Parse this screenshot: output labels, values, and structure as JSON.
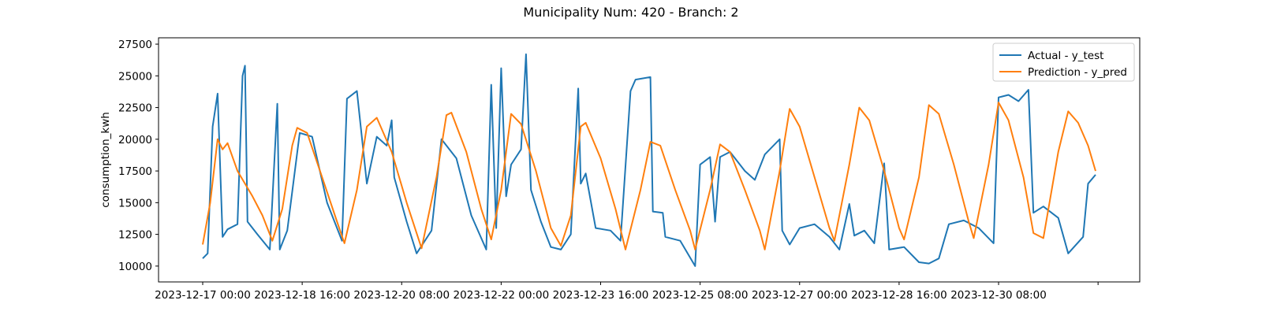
{
  "chart_data": {
    "type": "line",
    "title": "Municipality Num: 420 - Branch: 2",
    "xlabel": "",
    "ylabel": "consumption_kwh",
    "x_range": [
      "2023-12-17 00:00",
      "2023-12-31 23:00"
    ],
    "x_ticks": [
      "2023-12-17 00:00",
      "2023-12-18 16:00",
      "2023-12-20 08:00",
      "2023-12-22 00:00",
      "2023-12-23 16:00",
      "2023-12-25 08:00",
      "2023-12-27 00:00",
      "2023-12-28 16:00",
      "2023-12-30 08:00",
      ""
    ],
    "ylim": [
      8750,
      28000
    ],
    "y_ticks": [
      10000,
      12500,
      15000,
      17500,
      20000,
      22500,
      25000,
      27500
    ],
    "y_tick_labels": [
      "10000",
      "12500",
      "15000",
      "17500",
      "20000",
      "22500",
      "25000",
      "27500"
    ],
    "legend_position": "upper-right",
    "series": [
      {
        "name": "Actual - y_test",
        "color": "#1f77b4",
        "points": [
          [
            "2023-12-17 00:00",
            10600
          ],
          [
            "2023-12-17 02:00",
            11000
          ],
          [
            "2023-12-17 04:00",
            21000
          ],
          [
            "2023-12-17 06:00",
            23600
          ],
          [
            "2023-12-17 08:00",
            12300
          ],
          [
            "2023-12-17 10:00",
            12900
          ],
          [
            "2023-12-17 14:00",
            13300
          ],
          [
            "2023-12-17 16:00",
            25000
          ],
          [
            "2023-12-17 17:00",
            25800
          ],
          [
            "2023-12-17 18:00",
            13500
          ],
          [
            "2023-12-17 22:00",
            12500
          ],
          [
            "2023-12-18 03:00",
            11300
          ],
          [
            "2023-12-18 06:00",
            22800
          ],
          [
            "2023-12-18 07:00",
            11300
          ],
          [
            "2023-12-18 10:00",
            12800
          ],
          [
            "2023-12-18 15:00",
            20500
          ],
          [
            "2023-12-18 20:00",
            20200
          ],
          [
            "2023-12-19 02:00",
            15000
          ],
          [
            "2023-12-19 08:00",
            12000
          ],
          [
            "2023-12-19 10:00",
            23200
          ],
          [
            "2023-12-19 14:00",
            23800
          ],
          [
            "2023-12-19 18:00",
            16500
          ],
          [
            "2023-12-19 22:00",
            20200
          ],
          [
            "2023-12-20 02:00",
            19500
          ],
          [
            "2023-12-20 04:00",
            21500
          ],
          [
            "2023-12-20 05:00",
            17000
          ],
          [
            "2023-12-20 10:00",
            13500
          ],
          [
            "2023-12-20 14:00",
            11000
          ],
          [
            "2023-12-20 20:00",
            12800
          ],
          [
            "2023-12-21 00:00",
            20000
          ],
          [
            "2023-12-21 06:00",
            18500
          ],
          [
            "2023-12-21 12:00",
            14000
          ],
          [
            "2023-12-21 18:00",
            11300
          ],
          [
            "2023-12-21 20:00",
            24300
          ],
          [
            "2023-12-21 22:00",
            13000
          ],
          [
            "2023-12-22 00:00",
            25600
          ],
          [
            "2023-12-22 02:00",
            15500
          ],
          [
            "2023-12-22 04:00",
            18000
          ],
          [
            "2023-12-22 08:00",
            19200
          ],
          [
            "2023-12-22 10:00",
            26700
          ],
          [
            "2023-12-22 12:00",
            16000
          ],
          [
            "2023-12-22 16:00",
            13500
          ],
          [
            "2023-12-22 20:00",
            11500
          ],
          [
            "2023-12-23 00:00",
            11300
          ],
          [
            "2023-12-23 04:00",
            12500
          ],
          [
            "2023-12-23 07:00",
            24000
          ],
          [
            "2023-12-23 08:00",
            16500
          ],
          [
            "2023-12-23 10:00",
            17300
          ],
          [
            "2023-12-23 14:00",
            13000
          ],
          [
            "2023-12-23 20:00",
            12800
          ],
          [
            "2023-12-24 00:00",
            12000
          ],
          [
            "2023-12-24 04:00",
            23800
          ],
          [
            "2023-12-24 06:00",
            24700
          ],
          [
            "2023-12-24 12:00",
            24900
          ],
          [
            "2023-12-24 13:00",
            14300
          ],
          [
            "2023-12-24 17:00",
            14200
          ],
          [
            "2023-12-24 18:00",
            12300
          ],
          [
            "2023-12-25 00:00",
            12000
          ],
          [
            "2023-12-25 06:00",
            10000
          ],
          [
            "2023-12-25 08:00",
            18000
          ],
          [
            "2023-12-25 12:00",
            18600
          ],
          [
            "2023-12-25 14:00",
            13500
          ],
          [
            "2023-12-25 16:00",
            18600
          ],
          [
            "2023-12-25 20:00",
            19000
          ],
          [
            "2023-12-26 02:00",
            17500
          ],
          [
            "2023-12-26 06:00",
            16800
          ],
          [
            "2023-12-26 10:00",
            18800
          ],
          [
            "2023-12-26 16:00",
            20000
          ],
          [
            "2023-12-26 17:00",
            12800
          ],
          [
            "2023-12-26 20:00",
            11700
          ],
          [
            "2023-12-27 00:00",
            13000
          ],
          [
            "2023-12-27 06:00",
            13300
          ],
          [
            "2023-12-27 12:00",
            12300
          ],
          [
            "2023-12-27 16:00",
            11300
          ],
          [
            "2023-12-27 20:00",
            14900
          ],
          [
            "2023-12-27 22:00",
            12400
          ],
          [
            "2023-12-28 02:00",
            12800
          ],
          [
            "2023-12-28 06:00",
            11800
          ],
          [
            "2023-12-28 10:00",
            18100
          ],
          [
            "2023-12-28 12:00",
            11300
          ],
          [
            "2023-12-28 18:00",
            11500
          ],
          [
            "2023-12-29 00:00",
            10300
          ],
          [
            "2023-12-29 04:00",
            10200
          ],
          [
            "2023-12-29 08:00",
            10600
          ],
          [
            "2023-12-29 12:00",
            13300
          ],
          [
            "2023-12-29 18:00",
            13600
          ],
          [
            "2023-12-30 00:00",
            13000
          ],
          [
            "2023-12-30 06:00",
            11800
          ],
          [
            "2023-12-30 08:00",
            23300
          ],
          [
            "2023-12-30 12:00",
            23500
          ],
          [
            "2023-12-30 16:00",
            23000
          ],
          [
            "2023-12-30 20:00",
            23900
          ],
          [
            "2023-12-30 22:00",
            14200
          ],
          [
            "2023-12-31 02:00",
            14700
          ],
          [
            "2023-12-31 08:00",
            13800
          ],
          [
            "2023-12-31 12:00",
            11000
          ],
          [
            "2023-12-31 18:00",
            12300
          ],
          [
            "2023-12-31 20:00",
            16500
          ],
          [
            "2023-12-31 23:00",
            17200
          ]
        ]
      },
      {
        "name": "Prediction - y_pred",
        "color": "#ff7f0e",
        "points": [
          [
            "2023-12-17 00:00",
            11700
          ],
          [
            "2023-12-17 03:00",
            15000
          ],
          [
            "2023-12-17 06:00",
            20000
          ],
          [
            "2023-12-17 08:00",
            19200
          ],
          [
            "2023-12-17 10:00",
            19700
          ],
          [
            "2023-12-17 14:00",
            17500
          ],
          [
            "2023-12-17 20:00",
            15500
          ],
          [
            "2023-12-18 00:00",
            14000
          ],
          [
            "2023-12-18 04:00",
            12000
          ],
          [
            "2023-12-18 08:00",
            14500
          ],
          [
            "2023-12-18 12:00",
            19500
          ],
          [
            "2023-12-18 14:00",
            20900
          ],
          [
            "2023-12-18 18:00",
            20500
          ],
          [
            "2023-12-19 00:00",
            17000
          ],
          [
            "2023-12-19 06:00",
            13500
          ],
          [
            "2023-12-19 09:00",
            11800
          ],
          [
            "2023-12-19 14:00",
            16000
          ],
          [
            "2023-12-19 18:00",
            21000
          ],
          [
            "2023-12-19 22:00",
            21700
          ],
          [
            "2023-12-20 04:00",
            19000
          ],
          [
            "2023-12-20 10:00",
            15000
          ],
          [
            "2023-12-20 16:00",
            11400
          ],
          [
            "2023-12-20 22:00",
            17000
          ],
          [
            "2023-12-21 02:00",
            21900
          ],
          [
            "2023-12-21 04:00",
            22100
          ],
          [
            "2023-12-21 10:00",
            19000
          ],
          [
            "2023-12-21 16:00",
            14500
          ],
          [
            "2023-12-21 20:00",
            12100
          ],
          [
            "2023-12-22 00:00",
            16000
          ],
          [
            "2023-12-22 04:00",
            22000
          ],
          [
            "2023-12-22 08:00",
            21200
          ],
          [
            "2023-12-22 14:00",
            17500
          ],
          [
            "2023-12-22 20:00",
            13000
          ],
          [
            "2023-12-23 00:00",
            11600
          ],
          [
            "2023-12-23 04:00",
            14000
          ],
          [
            "2023-12-23 08:00",
            21000
          ],
          [
            "2023-12-23 10:00",
            21300
          ],
          [
            "2023-12-23 16:00",
            18500
          ],
          [
            "2023-12-23 22:00",
            14500
          ],
          [
            "2023-12-24 02:00",
            11300
          ],
          [
            "2023-12-24 08:00",
            16000
          ],
          [
            "2023-12-24 12:00",
            19800
          ],
          [
            "2023-12-24 16:00",
            19500
          ],
          [
            "2023-12-24 22:00",
            16000
          ],
          [
            "2023-12-25 04:00",
            12800
          ],
          [
            "2023-12-25 06:00",
            11300
          ],
          [
            "2023-12-25 12:00",
            16000
          ],
          [
            "2023-12-25 16:00",
            19600
          ],
          [
            "2023-12-25 20:00",
            19000
          ],
          [
            "2023-12-26 02:00",
            16000
          ],
          [
            "2023-12-26 08:00",
            12800
          ],
          [
            "2023-12-26 10:00",
            11300
          ],
          [
            "2023-12-26 16:00",
            17500
          ],
          [
            "2023-12-26 20:00",
            22400
          ],
          [
            "2023-12-27 00:00",
            21000
          ],
          [
            "2023-12-27 06:00",
            17000
          ],
          [
            "2023-12-27 12:00",
            13000
          ],
          [
            "2023-12-27 14:00",
            12000
          ],
          [
            "2023-12-27 20:00",
            18000
          ],
          [
            "2023-12-28 00:00",
            22500
          ],
          [
            "2023-12-28 04:00",
            21500
          ],
          [
            "2023-12-28 10:00",
            17500
          ],
          [
            "2023-12-28 16:00",
            13000
          ],
          [
            "2023-12-28 18:00",
            12100
          ],
          [
            "2023-12-29 00:00",
            17000
          ],
          [
            "2023-12-29 04:00",
            22700
          ],
          [
            "2023-12-29 08:00",
            22000
          ],
          [
            "2023-12-29 14:00",
            18000
          ],
          [
            "2023-12-29 20:00",
            13500
          ],
          [
            "2023-12-29 22:00",
            12200
          ],
          [
            "2023-12-30 04:00",
            18000
          ],
          [
            "2023-12-30 08:00",
            22900
          ],
          [
            "2023-12-30 12:00",
            21500
          ],
          [
            "2023-12-30 18:00",
            17000
          ],
          [
            "2023-12-30 22:00",
            12600
          ],
          [
            "2023-12-31 02:00",
            12200
          ],
          [
            "2023-12-31 08:00",
            19000
          ],
          [
            "2023-12-31 12:00",
            22200
          ],
          [
            "2023-12-31 16:00",
            21300
          ],
          [
            "2023-12-31 20:00",
            19500
          ],
          [
            "2023-12-31 23:00",
            17500
          ]
        ]
      }
    ]
  }
}
